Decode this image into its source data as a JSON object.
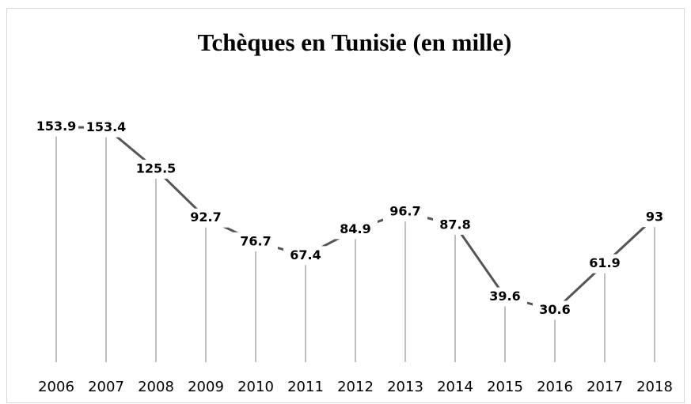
{
  "chart_data": {
    "type": "line",
    "title": "Tchèques en Tunisie (en mille)",
    "categories": [
      "2006",
      "2007",
      "2008",
      "2009",
      "2010",
      "2011",
      "2012",
      "2013",
      "2014",
      "2015",
      "2016",
      "2017",
      "2018"
    ],
    "values": [
      153.9,
      153.4,
      125.5,
      92.7,
      76.7,
      67.4,
      84.9,
      96.7,
      87.8,
      39.6,
      30.6,
      61.9,
      93
    ],
    "color": "#555555",
    "drop_line_color": "#bfbfbf"
  }
}
